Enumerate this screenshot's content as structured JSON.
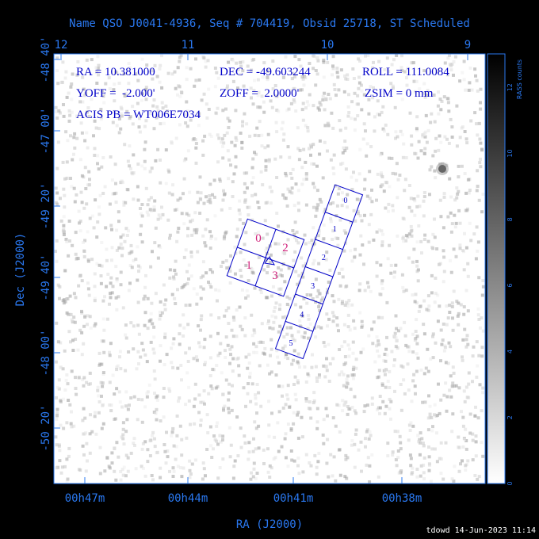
{
  "title": "Name QSO J0041-4936, Seq # 704419, Obsid 25718, ST Scheduled",
  "top_axis_labels": [
    "12",
    "11",
    "10",
    "9"
  ],
  "left_axis_labels": [
    "-48 40'",
    "-47 00'",
    "-49 20'",
    "-49 40'",
    "-48 00'",
    "-50 20'"
  ],
  "y_axis_title": "Dec (J2000)",
  "bottom_axis_labels": [
    "00h47m",
    "00h44m",
    "00h41m",
    "00h38m"
  ],
  "x_axis_title": "RA (J2000)",
  "info": [
    "RA = 10.381000",
    "DEC = -49.603244",
    "ROLL = 111.0084",
    "YOFF =  -2.000'",
    "ZOFF =  2.0000'",
    "ZSIM = 0 mm",
    "ACIS PB = WT006E7034"
  ],
  "colorbar_title": "RASS counts",
  "colorbar_ticks": [
    "0",
    "2",
    "4",
    "6",
    "8",
    "10",
    "12"
  ],
  "acis_i_labels": [
    "0",
    "1",
    "2",
    "3"
  ],
  "acis_s_labels": [
    "0",
    "1",
    "2",
    "3",
    "4",
    "5"
  ],
  "footer": "tdowd 14-Jun-2023 11:14"
}
